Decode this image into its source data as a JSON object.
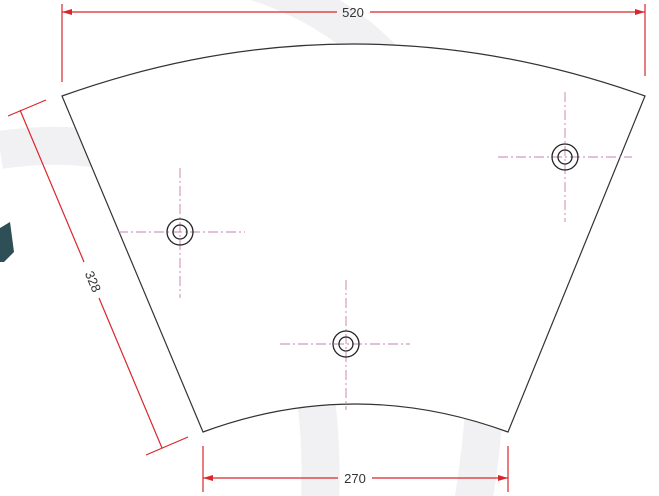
{
  "dimensions": {
    "top": "520",
    "left": "328",
    "bottom": "270"
  }
}
